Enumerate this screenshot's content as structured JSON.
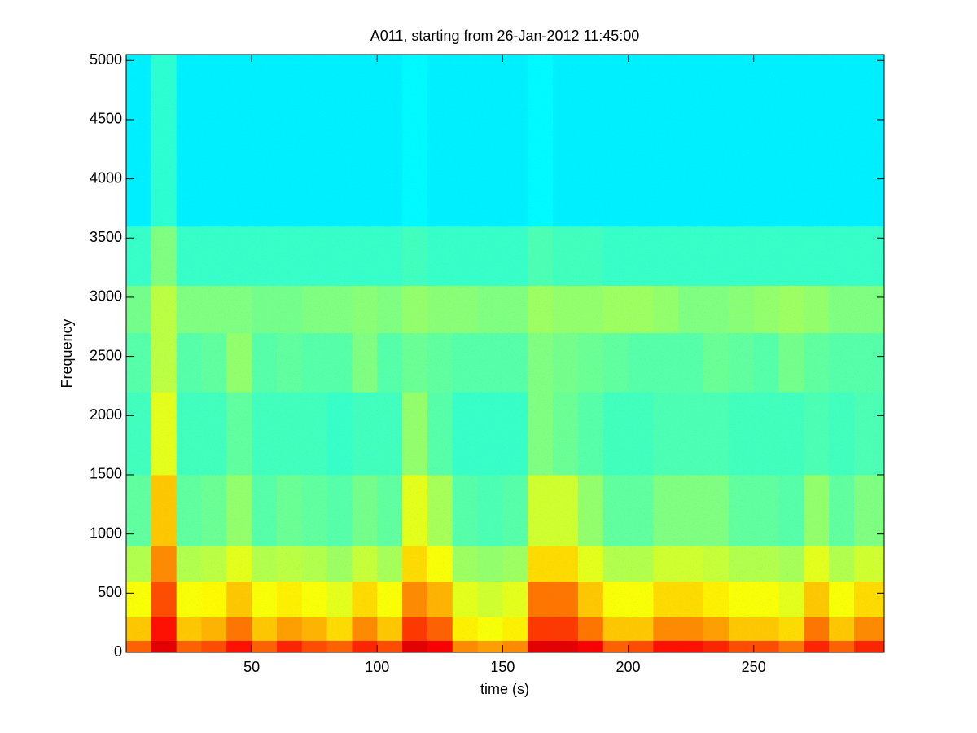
{
  "chart_data": {
    "type": "heatmap",
    "title": "A011, starting from 26-Jan-2012 11:45:00",
    "x_label": "time (s)",
    "y_label": "Frequency",
    "colormap": "jet",
    "zlim": [
      0,
      1
    ],
    "xlim": [
      0,
      302
    ],
    "ylim": [
      0,
      5050
    ],
    "xticks": [
      50,
      100,
      150,
      200,
      250
    ],
    "yticks": [
      0,
      500,
      1000,
      1500,
      2000,
      2500,
      3000,
      3500,
      4000,
      4500,
      5000
    ],
    "x_bins": [
      0,
      10,
      20,
      30,
      40,
      50,
      60,
      70,
      80,
      90,
      100,
      110,
      120,
      130,
      140,
      150,
      160,
      170,
      180,
      190,
      200,
      210,
      220,
      230,
      240,
      250,
      260,
      270,
      280,
      290,
      302
    ],
    "y_bins": [
      0,
      100,
      300,
      600,
      900,
      1500,
      2200,
      2700,
      3100,
      3600,
      5050
    ],
    "values": [
      [
        0.78,
        0.9,
        0.78,
        0.8,
        0.86,
        0.78,
        0.84,
        0.8,
        0.78,
        0.84,
        0.8,
        0.9,
        0.88,
        0.74,
        0.72,
        0.74,
        0.9,
        0.9,
        0.88,
        0.78,
        0.8,
        0.86,
        0.86,
        0.84,
        0.8,
        0.8,
        0.76,
        0.84,
        0.78,
        0.84
      ],
      [
        0.68,
        0.86,
        0.68,
        0.7,
        0.76,
        0.68,
        0.72,
        0.7,
        0.66,
        0.74,
        0.68,
        0.82,
        0.78,
        0.64,
        0.62,
        0.64,
        0.82,
        0.82,
        0.76,
        0.68,
        0.68,
        0.74,
        0.74,
        0.72,
        0.68,
        0.68,
        0.66,
        0.76,
        0.68,
        0.74
      ],
      [
        0.62,
        0.8,
        0.62,
        0.63,
        0.68,
        0.62,
        0.64,
        0.62,
        0.6,
        0.66,
        0.62,
        0.74,
        0.7,
        0.6,
        0.58,
        0.6,
        0.76,
        0.76,
        0.68,
        0.62,
        0.62,
        0.66,
        0.66,
        0.64,
        0.62,
        0.62,
        0.6,
        0.68,
        0.62,
        0.66
      ],
      [
        0.55,
        0.74,
        0.55,
        0.56,
        0.6,
        0.55,
        0.56,
        0.55,
        0.53,
        0.57,
        0.54,
        0.66,
        0.62,
        0.53,
        0.52,
        0.53,
        0.66,
        0.66,
        0.6,
        0.55,
        0.55,
        0.58,
        0.58,
        0.57,
        0.55,
        0.55,
        0.54,
        0.6,
        0.55,
        0.58
      ],
      [
        0.47,
        0.68,
        0.47,
        0.48,
        0.52,
        0.46,
        0.48,
        0.47,
        0.46,
        0.49,
        0.47,
        0.6,
        0.54,
        0.46,
        0.45,
        0.46,
        0.58,
        0.58,
        0.52,
        0.47,
        0.47,
        0.5,
        0.5,
        0.5,
        0.47,
        0.47,
        0.46,
        0.52,
        0.47,
        0.5
      ],
      [
        0.44,
        0.6,
        0.44,
        0.44,
        0.47,
        0.44,
        0.44,
        0.44,
        0.43,
        0.44,
        0.44,
        0.52,
        0.46,
        0.43,
        0.43,
        0.43,
        0.5,
        0.48,
        0.46,
        0.44,
        0.44,
        0.45,
        0.45,
        0.45,
        0.44,
        0.44,
        0.44,
        0.45,
        0.44,
        0.45
      ],
      [
        0.46,
        0.56,
        0.46,
        0.47,
        0.52,
        0.46,
        0.47,
        0.46,
        0.46,
        0.5,
        0.46,
        0.48,
        0.47,
        0.46,
        0.46,
        0.46,
        0.5,
        0.49,
        0.48,
        0.47,
        0.46,
        0.46,
        0.46,
        0.48,
        0.47,
        0.46,
        0.49,
        0.47,
        0.46,
        0.46
      ],
      [
        0.49,
        0.56,
        0.5,
        0.5,
        0.5,
        0.49,
        0.49,
        0.5,
        0.5,
        0.51,
        0.5,
        0.52,
        0.51,
        0.51,
        0.5,
        0.5,
        0.53,
        0.52,
        0.52,
        0.53,
        0.53,
        0.52,
        0.5,
        0.5,
        0.51,
        0.52,
        0.53,
        0.52,
        0.5,
        0.5
      ],
      [
        0.43,
        0.5,
        0.43,
        0.43,
        0.43,
        0.43,
        0.43,
        0.43,
        0.43,
        0.43,
        0.43,
        0.44,
        0.43,
        0.43,
        0.43,
        0.43,
        0.45,
        0.44,
        0.44,
        0.43,
        0.43,
        0.43,
        0.43,
        0.43,
        0.43,
        0.43,
        0.43,
        0.43,
        0.43,
        0.43
      ],
      [
        0.36,
        0.42,
        0.36,
        0.36,
        0.36,
        0.36,
        0.36,
        0.36,
        0.36,
        0.36,
        0.36,
        0.37,
        0.36,
        0.36,
        0.36,
        0.36,
        0.37,
        0.36,
        0.36,
        0.36,
        0.36,
        0.36,
        0.36,
        0.36,
        0.36,
        0.36,
        0.36,
        0.36,
        0.36,
        0.36
      ]
    ]
  }
}
